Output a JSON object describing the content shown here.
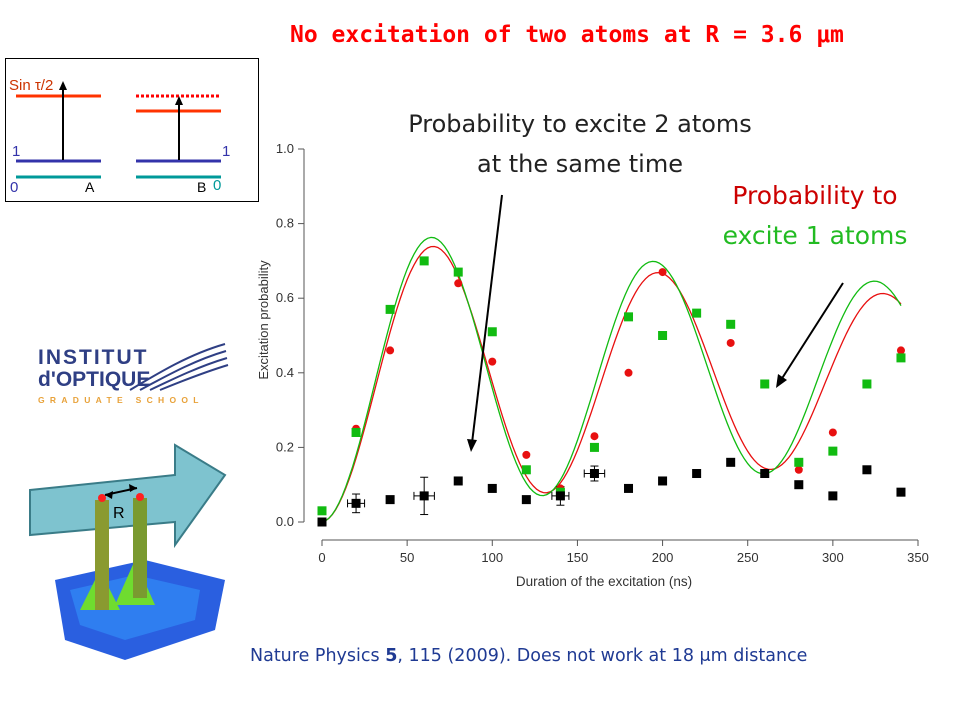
{
  "slide": {
    "title": "No excitation of two atoms at R = 3.6 μm",
    "annotation_two_atoms": [
      "Probability to excite 2 atoms",
      "at the same time"
    ],
    "annotation_one_atom": [
      "Probability to",
      "excite 1 atoms"
    ],
    "reference": {
      "before": "Nature Physics ",
      "bold": "5",
      "after": ", 115 (2009). Does not work at 18 μm distance"
    },
    "colors": {
      "title": "#ff0000",
      "red": "#e81010",
      "green": "#11bb11",
      "reference": "#1f3a93"
    }
  },
  "inset": {
    "label_sin": "Sin τ/2",
    "level_1_left": "1",
    "level_1_right": "1",
    "level_0_left": "0",
    "level_0_right": "0",
    "atom_a": "A",
    "atom_b": "B"
  },
  "logo": {
    "line1": "INSTITUT",
    "line2": "d'OPTIQUE",
    "line3": "GRADUATE SCHOOL"
  },
  "atom_image": {
    "label": "R"
  },
  "chart_data": {
    "type": "scatter",
    "xlabel": "Duration of the excitation (ns)",
    "ylabel": "Excitation probability",
    "xlim": [
      0,
      350
    ],
    "ylim": [
      0,
      1.0
    ],
    "xticks": [
      "0",
      "50",
      "100",
      "150",
      "200",
      "250",
      "300",
      "350"
    ],
    "yticks": [
      "0.0",
      "0.2",
      "0.4",
      "0.6",
      "0.8",
      "1.0"
    ],
    "series": [
      {
        "color": "#e81010",
        "marker": "circle",
        "x": [
          0,
          20,
          40,
          80,
          100,
          120,
          140,
          160,
          180,
          200,
          240,
          280,
          300,
          340
        ],
        "y": [
          0.0,
          0.25,
          0.46,
          0.64,
          0.43,
          0.18,
          0.09,
          0.23,
          0.4,
          0.67,
          0.48,
          0.14,
          0.24,
          0.46
        ]
      },
      {
        "color": "#11bb11",
        "marker": "square",
        "x": [
          0,
          20,
          40,
          60,
          80,
          100,
          120,
          140,
          160,
          180,
          200,
          220,
          240,
          260,
          280,
          300,
          320,
          340
        ],
        "y": [
          0.03,
          0.24,
          0.57,
          0.7,
          0.67,
          0.51,
          0.14,
          0.08,
          0.2,
          0.55,
          0.5,
          0.56,
          0.53,
          0.37,
          0.16,
          0.19,
          0.37,
          0.44
        ]
      },
      {
        "color": "#000000",
        "marker": "square",
        "x": [
          0,
          20,
          40,
          60,
          80,
          100,
          120,
          140,
          160,
          180,
          200,
          220,
          240,
          260,
          280,
          300,
          320,
          340
        ],
        "y": [
          0.0,
          0.05,
          0.06,
          0.07,
          0.11,
          0.09,
          0.06,
          0.07,
          0.13,
          0.09,
          0.11,
          0.13,
          0.16,
          0.13,
          0.1,
          0.07,
          0.14,
          0.08
        ],
        "error_bars": [
          {
            "x": 20,
            "dx": 5,
            "dy": 0.025
          },
          {
            "x": 60,
            "dx": 6,
            "dy": 0.05
          },
          {
            "x": 140,
            "dx": 5,
            "dy": 0.025
          },
          {
            "x": 160,
            "dx": 6,
            "dy": 0.02
          }
        ]
      }
    ],
    "fits": [
      {
        "color": "#e81010",
        "model": "damped-sine",
        "amplitude": 0.6,
        "period": 132,
        "damping": 0.17,
        "offset": 0.39
      },
      {
        "color": "#11bb11",
        "model": "damped-sine",
        "amplitude": 0.6,
        "period": 130,
        "damping": 0.15,
        "offset": 0.4
      }
    ]
  }
}
